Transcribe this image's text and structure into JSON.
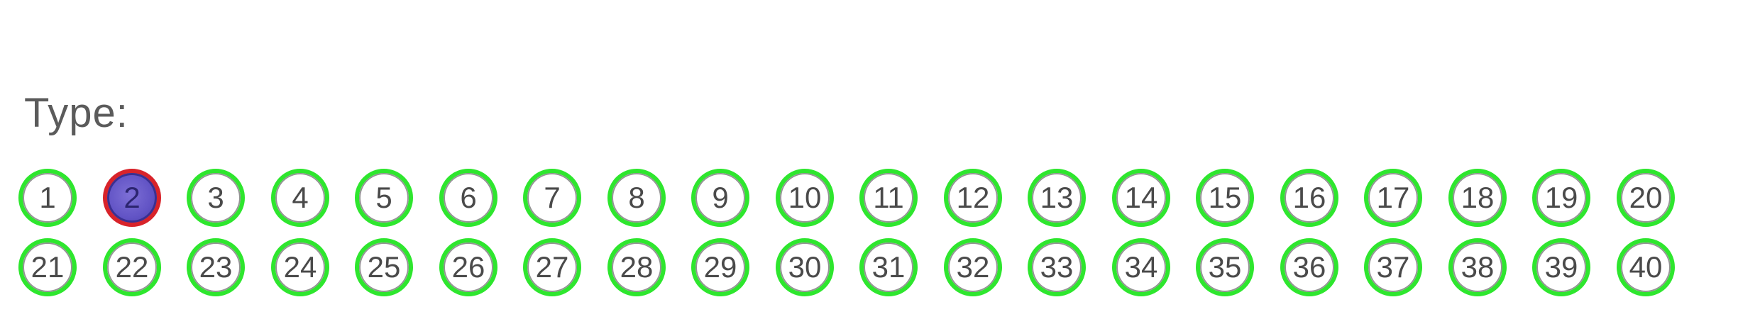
{
  "form": {
    "label": "Type:",
    "marked_value": "2",
    "options": [
      "1",
      "2",
      "3",
      "4",
      "5",
      "6",
      "7",
      "8",
      "9",
      "10",
      "11",
      "12",
      "13",
      "14",
      "15",
      "16",
      "17",
      "18",
      "19",
      "20",
      "21",
      "22",
      "23",
      "24",
      "25",
      "26",
      "27",
      "28",
      "29",
      "30",
      "31",
      "32",
      "33",
      "34",
      "35",
      "36",
      "37",
      "38",
      "39",
      "40"
    ]
  },
  "colors": {
    "bubble_outline": "#2ee62e",
    "marked_outline": "#d8232a",
    "marked_fill": "#6355c6",
    "text": "#4a4a4a"
  }
}
